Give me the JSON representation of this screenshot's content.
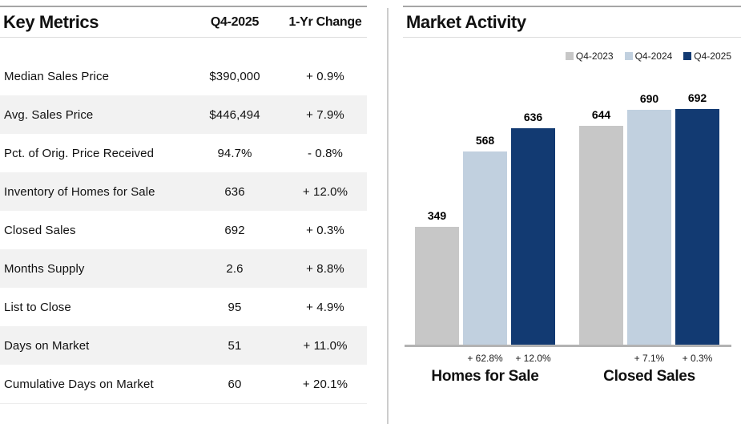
{
  "key_metrics": {
    "title": "Key Metrics",
    "columns": [
      "Q4-2025",
      "1-Yr Change"
    ],
    "rows": [
      {
        "label": "Median Sales Price",
        "value": "$390,000",
        "change": "+ 0.9%"
      },
      {
        "label": "Avg. Sales Price",
        "value": "$446,494",
        "change": "+ 7.9%"
      },
      {
        "label": "Pct. of Orig. Price Received",
        "value": "94.7%",
        "change": "- 0.8%"
      },
      {
        "label": "Inventory of Homes for Sale",
        "value": "636",
        "change": "+ 12.0%"
      },
      {
        "label": "Closed Sales",
        "value": "692",
        "change": "+ 0.3%"
      },
      {
        "label": "Months Supply",
        "value": "2.6",
        "change": "+ 8.8%"
      },
      {
        "label": "List to Close",
        "value": "95",
        "change": "+ 4.9%"
      },
      {
        "label": "Days on Market",
        "value": "51",
        "change": "+ 11.0%"
      },
      {
        "label": "Cumulative Days on Market",
        "value": "60",
        "change": "+ 20.1%"
      }
    ]
  },
  "market_activity": {
    "title": "Market Activity"
  },
  "chart_data": {
    "type": "bar",
    "title": "Market Activity",
    "categories": [
      "Homes for Sale",
      "Closed Sales"
    ],
    "series": [
      {
        "name": "Q4-2023",
        "color": "#c7c7c7",
        "values": [
          349,
          644
        ]
      },
      {
        "name": "Q4-2024",
        "color": "#c1d0df",
        "values": [
          568,
          690
        ]
      },
      {
        "name": "Q4-2025",
        "color": "#123a72",
        "values": [
          636,
          692
        ]
      }
    ],
    "change_labels": [
      [
        "",
        "+ 62.8%",
        "+ 12.0%"
      ],
      [
        "",
        "+ 7.1%",
        "+ 0.3%"
      ]
    ],
    "legend_position": "top-right",
    "ylim": [
      0,
      700
    ],
    "grid": false,
    "value_labels": true
  },
  "colors": {
    "rule_dark": "#a6a6a6",
    "rule_light": "#dcdcdc",
    "row_stripe": "#f2f2f2",
    "axis": "#b3b3b3",
    "divider": "#cccccc",
    "text": "#111111"
  }
}
